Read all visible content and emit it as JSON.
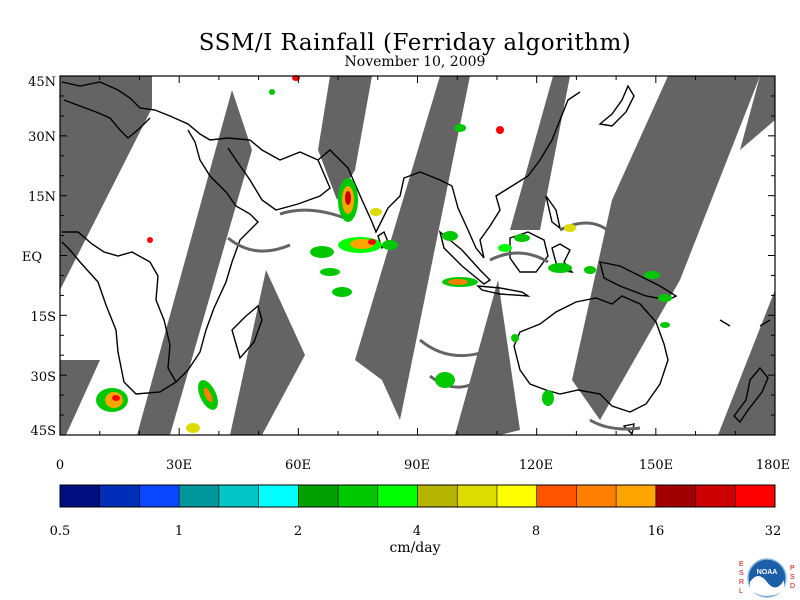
{
  "title": "SSM/I Rainfall (Ferriday algorithm)",
  "subtitle": "November 10, 2009",
  "lat_labels": [
    "45N",
    "30N",
    "15N",
    "EQ",
    "15S",
    "30S",
    "45S"
  ],
  "lon_labels": [
    "0",
    "30E",
    "60E",
    "90E",
    "120E",
    "150E",
    "180E"
  ],
  "extent": {
    "lon": [
      0,
      180
    ],
    "lat": [
      -45,
      45
    ]
  },
  "colorbar": {
    "unit": "cm/day",
    "tick_labels": [
      "0.5",
      "1",
      "2",
      "4",
      "8",
      "16",
      "32"
    ],
    "colors": [
      "#000e80",
      "#002eb8",
      "#0a46ff",
      "#00969b",
      "#00c6c6",
      "#00ffff",
      "#00a000",
      "#00c800",
      "#00ff00",
      "#b4b400",
      "#dcdc00",
      "#ffff00",
      "#ff5500",
      "#ff7f00",
      "#ffa500",
      "#a00000",
      "#cc0000",
      "#ff0000"
    ]
  },
  "colors": {
    "no_data": "#646464",
    "coast": "#000000",
    "background": "#ffffff"
  },
  "logo": {
    "left_letters": "ESRL",
    "right_letters": "PSD",
    "center_text": "NOAA"
  },
  "icons": {
    "logo": "noaa-logo-icon"
  }
}
